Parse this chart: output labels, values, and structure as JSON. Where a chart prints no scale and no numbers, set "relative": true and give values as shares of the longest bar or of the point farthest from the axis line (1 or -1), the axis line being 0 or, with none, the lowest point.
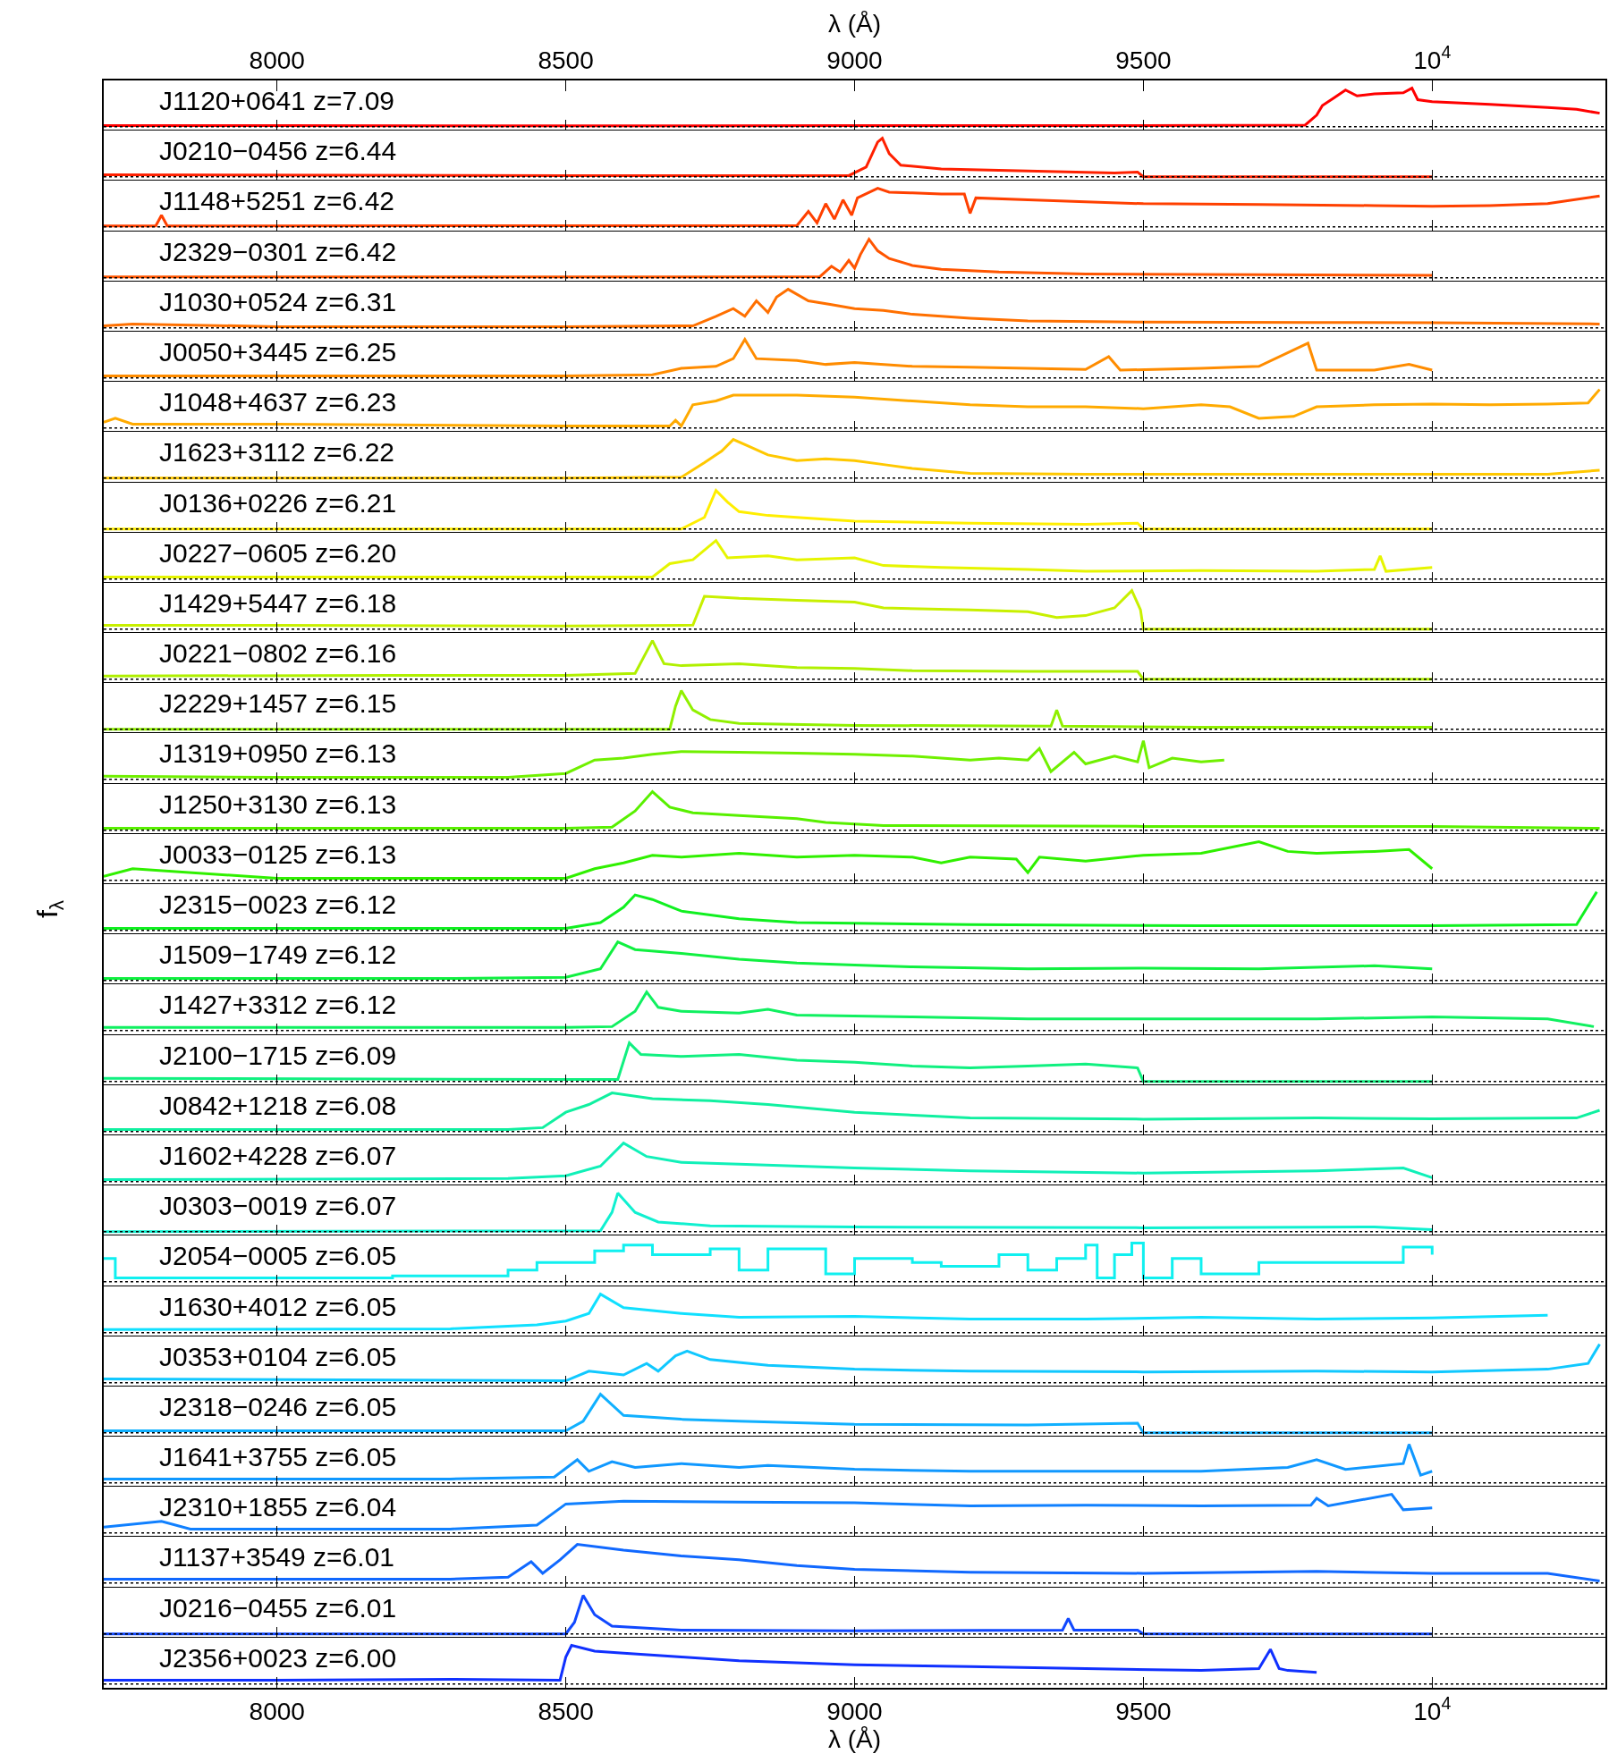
{
  "chart_data": [
    {
      "type": "line",
      "relative": true,
      "color": "#ff0000",
      "x": [
        7700,
        8000,
        8500,
        9000,
        9500,
        9780,
        9800,
        9810,
        9830,
        9850,
        9870,
        9900,
        9950,
        9965,
        9975,
        10000,
        10100,
        10200,
        10250,
        10290
      ],
      "values": [
        0.03,
        0.03,
        0.02,
        0.03,
        0.03,
        0.04,
        0.3,
        0.55,
        0.75,
        0.95,
        0.8,
        0.85,
        0.88,
        1.0,
        0.7,
        0.65,
        0.58,
        0.5,
        0.45,
        0.35
      ],
      "xlim": [
        7700,
        10300
      ],
      "xticks": [
        8000,
        8500,
        9000,
        9500,
        {
          "value": 10000,
          "label": "10$^{4}$"
        }
      ],
      "xlabel": "λ (Å)",
      "ref_lines": [
        {
          "axis": "y",
          "value": 0,
          "line_style": "dotted"
        }
      ],
      "annotations": [
        "J1120+0641 z=7.09"
      ]
    },
    {
      "type": "line",
      "relative": true,
      "color": "#ff2000",
      "x": [
        7700,
        8500,
        8990,
        9020,
        9040,
        9048,
        9060,
        9080,
        9150,
        9300,
        9450,
        9490,
        9500,
        10000
      ],
      "values": [
        0.05,
        0.03,
        0.03,
        0.25,
        0.9,
        1.0,
        0.6,
        0.3,
        0.2,
        0.15,
        0.1,
        0.12,
        0,
        0
      ],
      "xlim": [
        7700,
        10300
      ],
      "xticks": [
        8000,
        8500,
        9000,
        9500,
        10000
      ],
      "tick_labels": false,
      "ref_lines": [
        {
          "axis": "y",
          "value": 0,
          "line_style": "dotted"
        }
      ],
      "annotations": [
        "J0210−0456 z=6.44"
      ]
    },
    {
      "type": "line",
      "relative": true,
      "color": "#ff4000",
      "x": [
        7700,
        7790,
        7800,
        7810,
        8500,
        8900,
        8920,
        8935,
        8950,
        8965,
        8980,
        8995,
        9005,
        9040,
        9060,
        9100,
        9150,
        9190,
        9200,
        9210,
        9300,
        9400,
        9500,
        9700,
        9900,
        10000,
        10100,
        10200,
        10290
      ],
      "values": [
        0.02,
        0.02,
        0.3,
        0.02,
        0.03,
        0.03,
        0.4,
        0.1,
        0.6,
        0.2,
        0.7,
        0.3,
        0.75,
        1.0,
        0.9,
        0.88,
        0.85,
        0.85,
        0.35,
        0.75,
        0.7,
        0.65,
        0.6,
        0.58,
        0.55,
        0.53,
        0.55,
        0.6,
        0.8
      ],
      "xlim": [
        7700,
        10300
      ],
      "xticks": [
        8000,
        8500,
        9000,
        9500,
        10000
      ],
      "tick_labels": false,
      "ref_lines": [
        {
          "axis": "y",
          "value": 0,
          "line_style": "dotted"
        }
      ],
      "annotations": [
        "J1148+5251 z=6.42"
      ]
    },
    {
      "type": "line",
      "relative": true,
      "color": "#ff5500",
      "x": [
        7700,
        8500,
        8940,
        8960,
        8975,
        8990,
        9000,
        9010,
        9025,
        9040,
        9060,
        9100,
        9150,
        9250,
        9400,
        9700,
        10000
      ],
      "values": [
        0.02,
        0.02,
        0.03,
        0.3,
        0.15,
        0.45,
        0.25,
        0.6,
        1.0,
        0.7,
        0.5,
        0.32,
        0.22,
        0.15,
        0.1,
        0.08,
        0.06
      ],
      "xlim": [
        7700,
        10300
      ],
      "xticks": [
        8000,
        8500,
        9000,
        9500,
        10000
      ],
      "tick_labels": false,
      "ref_lines": [
        {
          "axis": "y",
          "value": 0,
          "line_style": "dotted"
        }
      ],
      "annotations": [
        "J2329−0301 z=6.42"
      ]
    },
    {
      "type": "line",
      "relative": true,
      "color": "#ff7000",
      "x": [
        7700,
        7750,
        8000,
        8500,
        8720,
        8760,
        8790,
        8810,
        8830,
        8850,
        8865,
        8885,
        8920,
        8960,
        9000,
        9050,
        9100,
        9200,
        9300,
        9500,
        9800,
        10000,
        10290
      ],
      "values": [
        0.05,
        0.1,
        0.03,
        0.03,
        0.05,
        0.3,
        0.5,
        0.3,
        0.7,
        0.4,
        0.8,
        1.0,
        0.7,
        0.6,
        0.5,
        0.45,
        0.35,
        0.25,
        0.18,
        0.15,
        0.14,
        0.13,
        0.1
      ],
      "xlim": [
        7700,
        10300
      ],
      "xticks": [
        8000,
        8500,
        9000,
        9500,
        10000
      ],
      "tick_labels": false,
      "ref_lines": [
        {
          "axis": "y",
          "value": 0,
          "line_style": "dotted"
        }
      ],
      "annotations": [
        "J1030+0524 z=6.31"
      ]
    },
    {
      "type": "line",
      "relative": true,
      "color": "#ff8c00",
      "x": [
        7700,
        8000,
        8500,
        8650,
        8700,
        8760,
        8790,
        8810,
        8830,
        8900,
        8950,
        9000,
        9100,
        9200,
        9300,
        9400,
        9440,
        9460,
        9600,
        9700,
        9785,
        9800,
        9900,
        9960,
        10000
      ],
      "values": [
        0.05,
        0.05,
        0.05,
        0.08,
        0.25,
        0.3,
        0.5,
        1.0,
        0.5,
        0.45,
        0.35,
        0.4,
        0.3,
        0.28,
        0.25,
        0.22,
        0.55,
        0.2,
        0.25,
        0.3,
        0.9,
        0.2,
        0.2,
        0.35,
        0.2
      ],
      "xlim": [
        7700,
        10300
      ],
      "xticks": [
        8000,
        8500,
        9000,
        9500,
        10000
      ],
      "tick_labels": false,
      "ref_lines": [
        {
          "axis": "y",
          "value": 0,
          "line_style": "dotted"
        }
      ],
      "annotations": [
        "J0050+3445 z=6.25"
      ]
    },
    {
      "type": "line",
      "relative": true,
      "color": "#ffaa00",
      "x": [
        7700,
        7720,
        7750,
        8000,
        8200,
        8500,
        8680,
        8690,
        8700,
        8720,
        8760,
        8790,
        8900,
        9000,
        9100,
        9200,
        9300,
        9400,
        9500,
        9600,
        9650,
        9700,
        9760,
        9800,
        9900,
        10000,
        10100,
        10200,
        10270,
        10290
      ],
      "values": [
        0.15,
        0.25,
        0.1,
        0.1,
        0.08,
        0.05,
        0.05,
        0.2,
        0.05,
        0.6,
        0.7,
        0.85,
        0.85,
        0.8,
        0.7,
        0.6,
        0.55,
        0.55,
        0.5,
        0.6,
        0.55,
        0.25,
        0.3,
        0.55,
        0.6,
        0.62,
        0.6,
        0.62,
        0.65,
        1.0
      ],
      "xlim": [
        7700,
        10300
      ],
      "xticks": [
        8000,
        8500,
        9000,
        9500,
        10000
      ],
      "tick_labels": false,
      "ref_lines": [
        {
          "axis": "y",
          "value": 0,
          "line_style": "dotted"
        }
      ],
      "annotations": [
        "J1048+4637 z=6.23"
      ]
    },
    {
      "type": "line",
      "relative": true,
      "color": "#ffc800",
      "x": [
        7700,
        8500,
        8700,
        8740,
        8770,
        8790,
        8820,
        8850,
        8900,
        8950,
        9000,
        9050,
        9100,
        9200,
        9400,
        9800,
        10200,
        10290
      ],
      "values": [
        0,
        0,
        0.02,
        0.4,
        0.7,
        1.0,
        0.8,
        0.6,
        0.45,
        0.5,
        0.45,
        0.35,
        0.25,
        0.12,
        0.1,
        0.1,
        0.1,
        0.2
      ],
      "xlim": [
        7700,
        10300
      ],
      "xticks": [
        8000,
        8500,
        9000,
        9500,
        10000
      ],
      "tick_labels": false,
      "ref_lines": [
        {
          "axis": "y",
          "value": 0,
          "line_style": "dotted"
        }
      ],
      "annotations": [
        "J1623+3112 z=6.22"
      ]
    },
    {
      "type": "line",
      "relative": true,
      "color": "#ffee00",
      "x": [
        7700,
        8700,
        8740,
        8760,
        8780,
        8800,
        8850,
        8900,
        9000,
        9200,
        9400,
        9490,
        9500,
        10000
      ],
      "values": [
        0,
        0,
        0.3,
        1.0,
        0.7,
        0.45,
        0.35,
        0.3,
        0.2,
        0.15,
        0.12,
        0.15,
        0,
        0
      ],
      "xlim": [
        7700,
        10300
      ],
      "xticks": [
        8000,
        8500,
        9000,
        9500,
        10000
      ],
      "tick_labels": false,
      "ref_lines": [
        {
          "axis": "y",
          "value": 0,
          "line_style": "dotted"
        }
      ],
      "annotations": [
        "J0136+0226 z=6.21"
      ]
    },
    {
      "type": "line",
      "relative": true,
      "color": "#e6f500",
      "x": [
        7700,
        8000,
        8500,
        8650,
        8680,
        8720,
        8760,
        8780,
        8850,
        8900,
        9000,
        9050,
        9150,
        9300,
        9400,
        9600,
        9800,
        9900,
        9910,
        9920,
        10000
      ],
      "values": [
        0.05,
        0.05,
        0.05,
        0.05,
        0.4,
        0.5,
        1.0,
        0.55,
        0.6,
        0.5,
        0.55,
        0.35,
        0.3,
        0.25,
        0.2,
        0.22,
        0.2,
        0.25,
        0.6,
        0.2,
        0.3
      ],
      "xlim": [
        7700,
        10300
      ],
      "xticks": [
        8000,
        8500,
        9000,
        9500,
        10000
      ],
      "tick_labels": false,
      "ref_lines": [
        {
          "axis": "y",
          "value": 0,
          "line_style": "dotted"
        }
      ],
      "annotations": [
        "J0227−0605 z=6.20"
      ]
    },
    {
      "type": "line",
      "relative": true,
      "color": "#c8f000",
      "x": [
        7700,
        8000,
        8500,
        8720,
        8740,
        8800,
        8900,
        9000,
        9050,
        9200,
        9300,
        9350,
        9400,
        9450,
        9480,
        9495,
        9500,
        10000
      ],
      "values": [
        0.1,
        0.1,
        0.08,
        0.1,
        0.85,
        0.8,
        0.75,
        0.7,
        0.55,
        0.5,
        0.45,
        0.3,
        0.35,
        0.55,
        1.0,
        0.5,
        0,
        0
      ],
      "xlim": [
        7700,
        10300
      ],
      "xticks": [
        8000,
        8500,
        9000,
        9500,
        10000
      ],
      "tick_labels": false,
      "ref_lines": [
        {
          "axis": "y",
          "value": 0,
          "line_style": "dotted"
        }
      ],
      "annotations": [
        "J1429+5447 z=6.18"
      ]
    },
    {
      "type": "line",
      "relative": true,
      "color": "#b0f000",
      "x": [
        7700,
        8200,
        8500,
        8620,
        8650,
        8670,
        8700,
        8800,
        8900,
        9000,
        9100,
        9300,
        9490,
        9500,
        10000
      ],
      "values": [
        0.08,
        0.1,
        0.1,
        0.15,
        1.0,
        0.4,
        0.35,
        0.4,
        0.3,
        0.28,
        0.22,
        0.2,
        0.2,
        0,
        0
      ],
      "xlim": [
        7700,
        10300
      ],
      "xticks": [
        8000,
        8500,
        9000,
        9500,
        10000
      ],
      "tick_labels": false,
      "ref_lines": [
        {
          "axis": "y",
          "value": 0,
          "line_style": "dotted"
        }
      ],
      "annotations": [
        "J0221−0802 z=6.16"
      ]
    },
    {
      "type": "line",
      "relative": true,
      "color": "#90f000",
      "x": [
        7700,
        8680,
        8690,
        8700,
        8720,
        8750,
        8800,
        9000,
        9340,
        9350,
        9360,
        9600,
        10000
      ],
      "values": [
        0,
        0,
        0.6,
        1.0,
        0.5,
        0.25,
        0.15,
        0.1,
        0.08,
        0.5,
        0.08,
        0.05,
        0.05
      ],
      "xlim": [
        7700,
        10300
      ],
      "xticks": [
        8000,
        8500,
        9000,
        9500,
        10000
      ],
      "tick_labels": false,
      "ref_lines": [
        {
          "axis": "y",
          "value": 0,
          "line_style": "dotted"
        }
      ],
      "annotations": [
        "J2229+1457 z=6.15"
      ]
    },
    {
      "type": "line",
      "relative": true,
      "color": "#70f000",
      "x": [
        7700,
        8000,
        8400,
        8500,
        8550,
        8600,
        8650,
        8700,
        8800,
        8900,
        9000,
        9100,
        9200,
        9250,
        9300,
        9320,
        9340,
        9380,
        9400,
        9450,
        9490,
        9500,
        9510,
        9550,
        9600,
        9640
      ],
      "values": [
        0.08,
        0.05,
        0.05,
        0.15,
        0.5,
        0.55,
        0.65,
        0.72,
        0.7,
        0.68,
        0.65,
        0.6,
        0.5,
        0.55,
        0.5,
        0.8,
        0.2,
        0.7,
        0.4,
        0.6,
        0.45,
        1.0,
        0.3,
        0.55,
        0.45,
        0.5
      ],
      "xlim": [
        7700,
        10300
      ],
      "xticks": [
        8000,
        8500,
        9000,
        9500,
        10000
      ],
      "tick_labels": false,
      "ref_lines": [
        {
          "axis": "y",
          "value": 0,
          "line_style": "dotted"
        }
      ],
      "annotations": [
        "J1319+0950 z=6.13"
      ]
    },
    {
      "type": "line",
      "relative": true,
      "color": "#58f000",
      "x": [
        7700,
        8500,
        8580,
        8620,
        8650,
        8680,
        8720,
        8800,
        8900,
        8950,
        9050,
        9500,
        10000,
        10290
      ],
      "values": [
        0.05,
        0.05,
        0.08,
        0.5,
        1.0,
        0.6,
        0.45,
        0.38,
        0.3,
        0.2,
        0.12,
        0.1,
        0.1,
        0.05
      ],
      "xlim": [
        7700,
        10300
      ],
      "xticks": [
        8000,
        8500,
        9000,
        9500,
        10000
      ],
      "tick_labels": false,
      "ref_lines": [
        {
          "axis": "y",
          "value": 0,
          "line_style": "dotted"
        }
      ],
      "annotations": [
        "J1250+3130 z=6.13"
      ]
    },
    {
      "type": "line",
      "relative": true,
      "color": "#30f000",
      "x": [
        7700,
        7750,
        8000,
        8500,
        8550,
        8600,
        8650,
        8700,
        8800,
        8900,
        9000,
        9100,
        9150,
        9200,
        9280,
        9300,
        9320,
        9400,
        9500,
        9600,
        9700,
        9750,
        9800,
        9900,
        9960,
        10000
      ],
      "values": [
        0.1,
        0.3,
        0.05,
        0.05,
        0.3,
        0.45,
        0.65,
        0.6,
        0.7,
        0.6,
        0.65,
        0.6,
        0.45,
        0.6,
        0.55,
        0.2,
        0.6,
        0.5,
        0.65,
        0.7,
        1.0,
        0.75,
        0.7,
        0.75,
        0.8,
        0.3
      ],
      "xlim": [
        7700,
        10300
      ],
      "xticks": [
        8000,
        8500,
        9000,
        9500,
        10000
      ],
      "tick_labels": false,
      "ref_lines": [
        {
          "axis": "y",
          "value": 0,
          "line_style": "dotted"
        }
      ],
      "annotations": [
        "J0033−0125 z=6.13"
      ]
    },
    {
      "type": "line",
      "relative": true,
      "color": "#10f020",
      "x": [
        7700,
        8500,
        8560,
        8600,
        8620,
        8650,
        8700,
        8800,
        8900,
        9200,
        9600,
        10000,
        10250,
        10285
      ],
      "values": [
        0.05,
        0.05,
        0.2,
        0.6,
        0.92,
        0.8,
        0.5,
        0.3,
        0.2,
        0.15,
        0.12,
        0.12,
        0.15,
        1.0
      ],
      "xlim": [
        7700,
        10300
      ],
      "xticks": [
        8000,
        8500,
        9000,
        9500,
        10000
      ],
      "tick_labels": false,
      "ylabel": "f$_{λ}$",
      "ref_lines": [
        {
          "axis": "y",
          "value": 0,
          "line_style": "dotted"
        }
      ],
      "annotations": [
        "J2315−0023 z=6.12"
      ]
    },
    {
      "type": "line",
      "relative": true,
      "color": "#10f040",
      "x": [
        7700,
        8300,
        8500,
        8560,
        8590,
        8620,
        8700,
        8800,
        8900,
        9000,
        9100,
        9300,
        9500,
        9700,
        9900,
        10000
      ],
      "values": [
        0.05,
        0.05,
        0.08,
        0.3,
        1.0,
        0.8,
        0.7,
        0.55,
        0.45,
        0.4,
        0.35,
        0.3,
        0.32,
        0.3,
        0.38,
        0.3
      ],
      "xlim": [
        7700,
        10300
      ],
      "xticks": [
        8000,
        8500,
        9000,
        9500,
        10000
      ],
      "tick_labels": false,
      "ref_lines": [
        {
          "axis": "y",
          "value": 0,
          "line_style": "dotted"
        }
      ],
      "annotations": [
        "J1509−1749 z=6.12"
      ]
    },
    {
      "type": "line",
      "relative": true,
      "color": "#10f060",
      "x": [
        7700,
        8500,
        8580,
        8620,
        8640,
        8660,
        8700,
        8800,
        8850,
        8900,
        9100,
        9300,
        9600,
        9800,
        10000,
        10200,
        10280
      ],
      "values": [
        0.08,
        0.08,
        0.1,
        0.5,
        1.0,
        0.6,
        0.5,
        0.45,
        0.55,
        0.4,
        0.35,
        0.3,
        0.3,
        0.3,
        0.35,
        0.3,
        0.1
      ],
      "xlim": [
        7700,
        10300
      ],
      "xticks": [
        8000,
        8500,
        9000,
        9500,
        10000
      ],
      "tick_labels": false,
      "ref_lines": [
        {
          "axis": "y",
          "value": 0,
          "line_style": "dotted"
        }
      ],
      "annotations": [
        "J1427+3312 z=6.12"
      ]
    },
    {
      "type": "line",
      "relative": true,
      "color": "#10f080",
      "x": [
        7700,
        8500,
        8590,
        8610,
        8630,
        8700,
        8800,
        8900,
        9000,
        9100,
        9200,
        9300,
        9400,
        9490,
        9500,
        10000
      ],
      "values": [
        0.08,
        0.05,
        0.05,
        1.0,
        0.7,
        0.65,
        0.7,
        0.55,
        0.5,
        0.4,
        0.35,
        0.4,
        0.45,
        0.35,
        0,
        0
      ],
      "xlim": [
        7700,
        10300
      ],
      "xticks": [
        8000,
        8500,
        9000,
        9500,
        10000
      ],
      "tick_labels": false,
      "ref_lines": [
        {
          "axis": "y",
          "value": 0,
          "line_style": "dotted"
        }
      ],
      "annotations": [
        "J2100−1715 z=6.09"
      ]
    },
    {
      "type": "line",
      "relative": true,
      "color": "#10f0a0",
      "x": [
        7700,
        8400,
        8460,
        8500,
        8540,
        8580,
        8650,
        8750,
        8850,
        9000,
        9200,
        9500,
        9800,
        10000,
        10250,
        10290
      ],
      "values": [
        0.05,
        0.05,
        0.1,
        0.5,
        0.7,
        1.0,
        0.85,
        0.8,
        0.7,
        0.5,
        0.35,
        0.32,
        0.35,
        0.33,
        0.35,
        0.55
      ],
      "xlim": [
        7700,
        10300
      ],
      "xticks": [
        8000,
        8500,
        9000,
        9500,
        10000
      ],
      "tick_labels": false,
      "ref_lines": [
        {
          "axis": "y",
          "value": 0,
          "line_style": "dotted"
        }
      ],
      "annotations": [
        "J0842+1218 z=6.08"
      ]
    },
    {
      "type": "line",
      "relative": true,
      "color": "#10f0b8",
      "x": [
        7700,
        8400,
        8500,
        8560,
        8600,
        8640,
        8700,
        8800,
        9000,
        9200,
        9500,
        9800,
        9950,
        10000
      ],
      "values": [
        0.05,
        0.08,
        0.15,
        0.4,
        1.0,
        0.65,
        0.5,
        0.45,
        0.35,
        0.28,
        0.22,
        0.28,
        0.35,
        0.1
      ],
      "xlim": [
        7700,
        10300
      ],
      "xticks": [
        8000,
        8500,
        9000,
        9500,
        10000
      ],
      "tick_labels": false,
      "ref_lines": [
        {
          "axis": "y",
          "value": 0,
          "line_style": "dotted"
        }
      ],
      "annotations": [
        "J1602+4228 z=6.07"
      ]
    },
    {
      "type": "line",
      "relative": true,
      "color": "#10f0d0",
      "x": [
        7700,
        8560,
        8580,
        8590,
        8620,
        8660,
        8750,
        9000,
        9500,
        9900,
        10000
      ],
      "values": [
        0,
        0.02,
        0.5,
        1.0,
        0.5,
        0.25,
        0.15,
        0.12,
        0.1,
        0.12,
        0.05
      ],
      "xlim": [
        7700,
        10300
      ],
      "xticks": [
        8000,
        8500,
        9000,
        9500,
        10000
      ],
      "tick_labels": false,
      "ref_lines": [
        {
          "axis": "y",
          "value": 0,
          "line_style": "dotted"
        }
      ],
      "annotations": [
        "J0303−0019 z=6.07"
      ]
    },
    {
      "type": "step",
      "relative": true,
      "color": "#10f0f0",
      "x": [
        7700,
        7720,
        8000,
        8200,
        8400,
        8450,
        8550,
        8600,
        8650,
        8750,
        8800,
        8850,
        8950,
        9000,
        9100,
        9150,
        9250,
        9300,
        9350,
        9400,
        9420,
        9450,
        9480,
        9500,
        9550,
        9600,
        9700,
        9800,
        9900,
        9950,
        10000
      ],
      "values": [
        0.6,
        0.1,
        0.1,
        0.15,
        0.3,
        0.5,
        0.8,
        0.95,
        0.7,
        0.85,
        0.3,
        0.85,
        0.2,
        0.6,
        0.5,
        0.4,
        0.7,
        0.3,
        0.6,
        0.95,
        0.1,
        0.7,
        1.0,
        0.1,
        0.6,
        0.2,
        0.5,
        0.5,
        0.5,
        0.9,
        0.7
      ],
      "xlim": [
        7700,
        10300
      ],
      "xticks": [
        8000,
        8500,
        9000,
        9500,
        10000
      ],
      "tick_labels": false,
      "ref_lines": [
        {
          "axis": "y",
          "value": 0,
          "line_style": "dotted"
        }
      ],
      "annotations": [
        "J2054−0005 z=6.05"
      ]
    },
    {
      "type": "line",
      "relative": true,
      "color": "#10e0ff",
      "x": [
        7700,
        8300,
        8450,
        8500,
        8540,
        8560,
        8600,
        8700,
        8800,
        9000,
        9200,
        9400,
        9600,
        9800,
        10000,
        10200
      ],
      "values": [
        0.08,
        0.1,
        0.2,
        0.3,
        0.5,
        1.0,
        0.65,
        0.5,
        0.4,
        0.42,
        0.35,
        0.35,
        0.4,
        0.35,
        0.38,
        0.45
      ],
      "xlim": [
        7700,
        10300
      ],
      "xticks": [
        8000,
        8500,
        9000,
        9500,
        10000
      ],
      "tick_labels": false,
      "ref_lines": [
        {
          "axis": "y",
          "value": 0,
          "line_style": "dotted"
        }
      ],
      "annotations": [
        "J1630+4012 z=6.05"
      ]
    },
    {
      "type": "line",
      "relative": true,
      "color": "#10c8ff",
      "x": [
        7700,
        8500,
        8540,
        8600,
        8640,
        8660,
        8690,
        8710,
        8750,
        8850,
        9000,
        9200,
        9500,
        9800,
        10000,
        10200,
        10270,
        10290
      ],
      "values": [
        0.1,
        0.05,
        0.3,
        0.2,
        0.5,
        0.3,
        0.7,
        0.82,
        0.6,
        0.45,
        0.35,
        0.3,
        0.28,
        0.3,
        0.28,
        0.35,
        0.5,
        1.0
      ],
      "xlim": [
        7700,
        10300
      ],
      "xticks": [
        8000,
        8500,
        9000,
        9500,
        10000
      ],
      "tick_labels": false,
      "ref_lines": [
        {
          "axis": "y",
          "value": 0,
          "line_style": "dotted"
        }
      ],
      "annotations": [
        "J0353+0104 z=6.05"
      ]
    },
    {
      "type": "line",
      "relative": true,
      "color": "#10b0ff",
      "x": [
        7700,
        8500,
        8530,
        8560,
        8600,
        8700,
        8800,
        9000,
        9300,
        9490,
        9500,
        10000
      ],
      "values": [
        0.05,
        0.05,
        0.3,
        1.0,
        0.45,
        0.35,
        0.3,
        0.22,
        0.2,
        0.25,
        0,
        0
      ],
      "xlim": [
        7700,
        10300
      ],
      "xticks": [
        8000,
        8500,
        9000,
        9500,
        10000
      ],
      "tick_labels": false,
      "ref_lines": [
        {
          "axis": "y",
          "value": 0,
          "line_style": "dotted"
        }
      ],
      "annotations": [
        "J2318−0246 z=6.05"
      ]
    },
    {
      "type": "line",
      "relative": true,
      "color": "#1098ff",
      "x": [
        7700,
        8300,
        8480,
        8520,
        8540,
        8580,
        8620,
        8700,
        8800,
        8850,
        9000,
        9200,
        9400,
        9600,
        9750,
        9800,
        9850,
        9950,
        9960,
        9980,
        10000
      ],
      "values": [
        0.1,
        0.1,
        0.15,
        0.6,
        0.3,
        0.55,
        0.4,
        0.5,
        0.4,
        0.45,
        0.35,
        0.3,
        0.3,
        0.3,
        0.4,
        0.6,
        0.35,
        0.5,
        1.0,
        0.2,
        0.3
      ],
      "xlim": [
        7700,
        10300
      ],
      "xticks": [
        8000,
        8500,
        9000,
        9500,
        10000
      ],
      "tick_labels": false,
      "ref_lines": [
        {
          "axis": "y",
          "value": 0,
          "line_style": "dotted"
        }
      ],
      "annotations": [
        "J1641+3755 z=6.05"
      ]
    },
    {
      "type": "line",
      "relative": true,
      "color": "#1080ff",
      "x": [
        7700,
        7800,
        7850,
        8300,
        8450,
        8500,
        8600,
        8800,
        9000,
        9200,
        9400,
        9600,
        9790,
        9800,
        9820,
        9930,
        9950,
        10000
      ],
      "values": [
        0.15,
        0.3,
        0.1,
        0.1,
        0.2,
        0.75,
        0.82,
        0.8,
        0.78,
        0.7,
        0.72,
        0.7,
        0.72,
        0.9,
        0.7,
        1.0,
        0.6,
        0.65
      ],
      "xlim": [
        7700,
        10300
      ],
      "xticks": [
        8000,
        8500,
        9000,
        9500,
        10000
      ],
      "tick_labels": false,
      "ref_lines": [
        {
          "axis": "y",
          "value": 0,
          "line_style": "dotted"
        }
      ],
      "annotations": [
        "J2310+1855 z=6.04"
      ]
    },
    {
      "type": "line",
      "relative": true,
      "color": "#1068ff",
      "x": [
        7700,
        8300,
        8400,
        8440,
        8460,
        8490,
        8520,
        8600,
        8700,
        8800,
        8900,
        9000,
        9200,
        9500,
        9800,
        10000,
        10200,
        10290
      ],
      "values": [
        0.1,
        0.1,
        0.15,
        0.55,
        0.25,
        0.6,
        1.0,
        0.85,
        0.7,
        0.6,
        0.45,
        0.35,
        0.28,
        0.25,
        0.3,
        0.25,
        0.25,
        0.05
      ],
      "xlim": [
        7700,
        10300
      ],
      "xticks": [
        8000,
        8500,
        9000,
        9500,
        10000
      ],
      "tick_labels": false,
      "ref_lines": [
        {
          "axis": "y",
          "value": 0,
          "line_style": "dotted"
        }
      ],
      "annotations": [
        "J1137+3549 z=6.01"
      ]
    },
    {
      "type": "line",
      "relative": true,
      "color": "#1048ff",
      "x": [
        7700,
        8500,
        8515,
        8530,
        8550,
        8580,
        8700,
        9000,
        9360,
        9370,
        9380,
        9490,
        9500,
        10000
      ],
      "values": [
        0,
        0,
        0.3,
        1.0,
        0.5,
        0.2,
        0.1,
        0.08,
        0.1,
        0.4,
        0.1,
        0.1,
        0,
        0
      ],
      "xlim": [
        7700,
        10300
      ],
      "xticks": [
        8000,
        8500,
        9000,
        9500,
        10000
      ],
      "tick_labels": false,
      "ref_lines": [
        {
          "axis": "y",
          "value": 0,
          "line_style": "dotted"
        }
      ],
      "annotations": [
        "J0216−0455 z=6.01"
      ]
    },
    {
      "type": "line",
      "relative": true,
      "color": "#1030ff",
      "x": [
        7700,
        8000,
        8300,
        8490,
        8500,
        8510,
        8550,
        8600,
        8700,
        8800,
        8900,
        9000,
        9200,
        9400,
        9600,
        9700,
        9720,
        9735,
        9750,
        9800
      ],
      "values": [
        0.1,
        0.1,
        0.12,
        0.1,
        0.7,
        1.0,
        0.85,
        0.8,
        0.7,
        0.6,
        0.55,
        0.5,
        0.45,
        0.4,
        0.35,
        0.4,
        0.9,
        0.4,
        0.35,
        0.3
      ],
      "xlim": [
        7700,
        10300
      ],
      "xticks": [
        8000,
        8500,
        9000,
        9500,
        {
          "value": 10000,
          "label": "10$^{4}$"
        }
      ],
      "tick_labels": "x",
      "xlabel": "λ (Å)",
      "ref_lines": [
        {
          "axis": "y",
          "value": 0,
          "line_style": "dotted"
        }
      ],
      "annotations": [
        "J2356+0023 z=6.00"
      ]
    }
  ]
}
